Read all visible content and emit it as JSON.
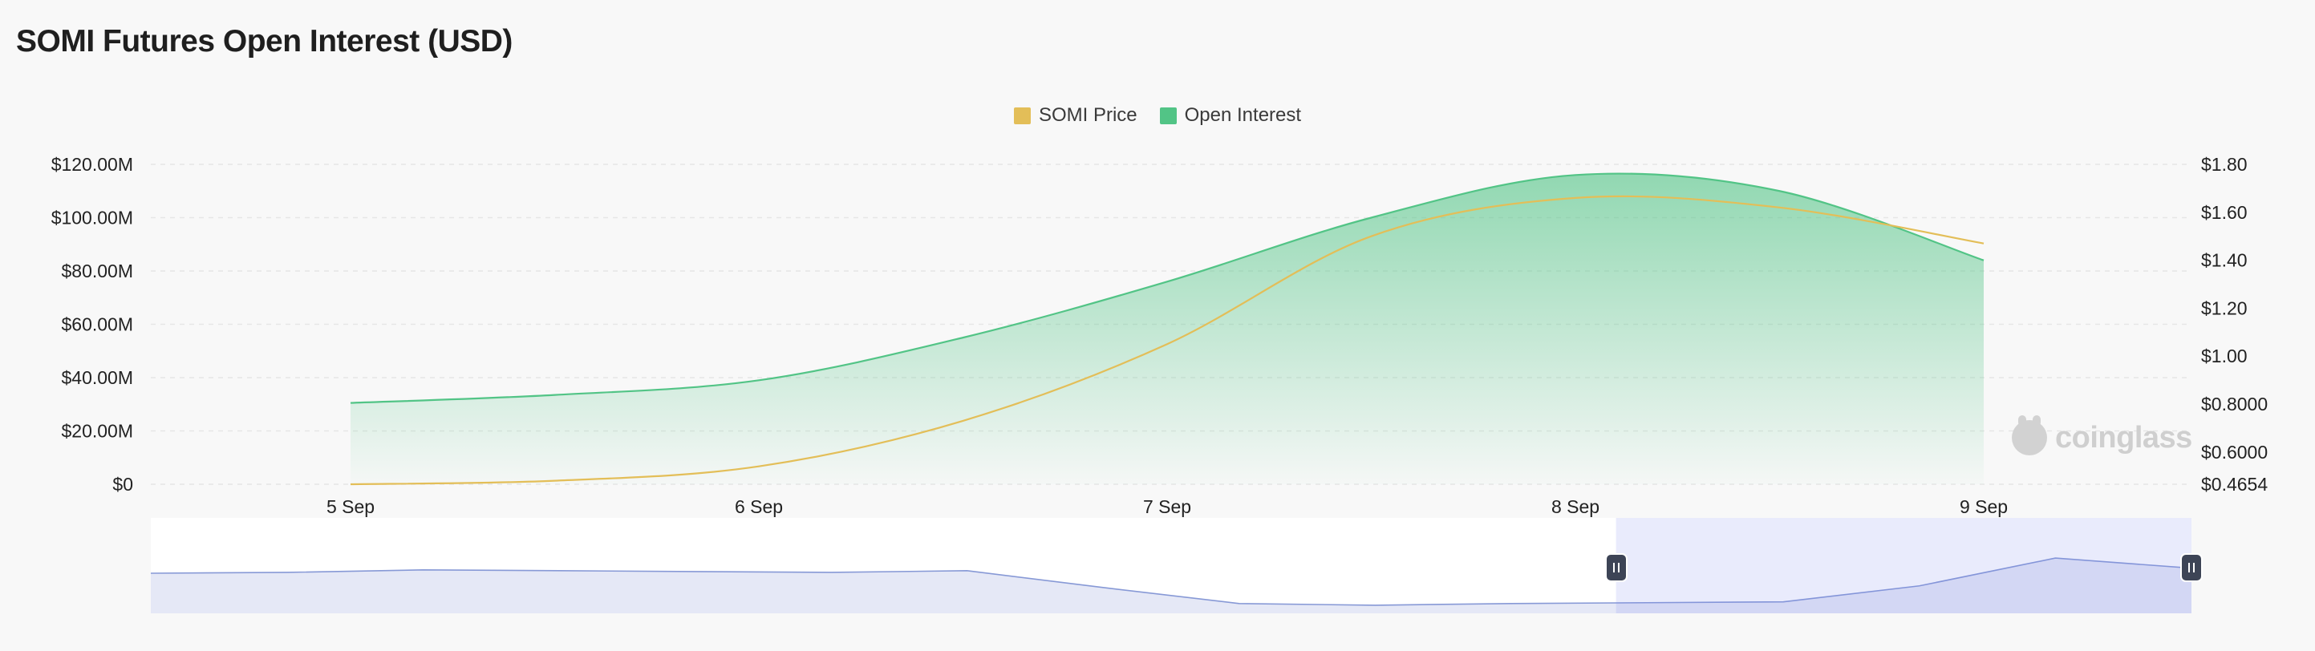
{
  "title": "SOMI Futures Open Interest (USD)",
  "legend": [
    {
      "label": "SOMI Price",
      "color": "#e3be58"
    },
    {
      "label": "Open Interest",
      "color": "#52c486"
    },
    {
      "_": "end"
    }
  ],
  "watermark": "coinglass",
  "chart_data": {
    "type": "area",
    "x": [
      "5 Sep",
      "5 Sep 12:00",
      "6 Sep",
      "6 Sep 12:00",
      "7 Sep",
      "7 Sep 12:00",
      "8 Sep",
      "8 Sep 12:00",
      "9 Sep"
    ],
    "x_tick_labels": [
      "5 Sep",
      "6 Sep",
      "7 Sep",
      "8 Sep",
      "9 Sep"
    ],
    "series": [
      {
        "name": "Open Interest",
        "axis": "left",
        "color": "#52c486",
        "values": [
          30.5,
          33.5,
          39.0,
          55.0,
          76.0,
          100.0,
          116.0,
          110.0,
          84.0
        ]
      },
      {
        "name": "SOMI Price",
        "axis": "right",
        "color": "#e3be58",
        "values": [
          0.4654,
          0.48,
          0.54,
          0.73,
          1.05,
          1.5,
          1.66,
          1.62,
          1.47
        ]
      }
    ],
    "y_left": {
      "ticks": [
        "$0",
        "$20.00M",
        "$40.00M",
        "$60.00M",
        "$80.00M",
        "$100.00M",
        "$120.00M"
      ],
      "range": [
        0,
        120
      ]
    },
    "y_right": {
      "ticks": [
        "$0.4654",
        "$0.6000",
        "$0.8000",
        "$1.00",
        "$1.20",
        "$1.40",
        "$1.60",
        "$1.80"
      ],
      "range": [
        0.4654,
        1.8
      ]
    },
    "grid": true,
    "legend_position": "top-center"
  },
  "navigator": {
    "values": [
      0.4,
      0.41,
      0.44,
      0.43,
      0.42,
      0.41,
      0.43,
      0.23,
      0.04,
      0.02,
      0.04,
      0.05,
      0.06,
      0.25,
      0.58,
      0.46
    ],
    "selected_start": 0.718,
    "selected_end": 1.0
  }
}
